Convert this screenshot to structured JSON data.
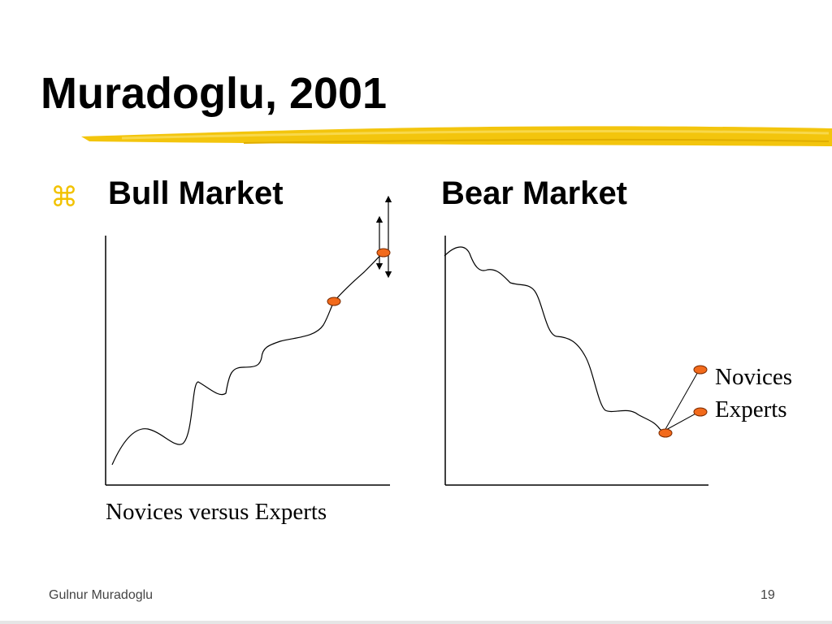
{
  "slide": {
    "title": "Muradoglu, 2001",
    "bullet_glyph": "⌘",
    "headings": {
      "bull": "Bull Market",
      "bear": "Bear Market"
    },
    "labels": {
      "novices": "Novices",
      "experts": "Experts"
    },
    "caption": "Novices versus Experts",
    "footer": {
      "author": "Gulnur Muradoglu",
      "page_number": "19"
    }
  },
  "colors": {
    "title_underline": "#F2C200",
    "bullet": "#F2C200",
    "marker_fill": "#F26A1B",
    "marker_stroke": "#7A2A00",
    "line": "#000000"
  }
}
